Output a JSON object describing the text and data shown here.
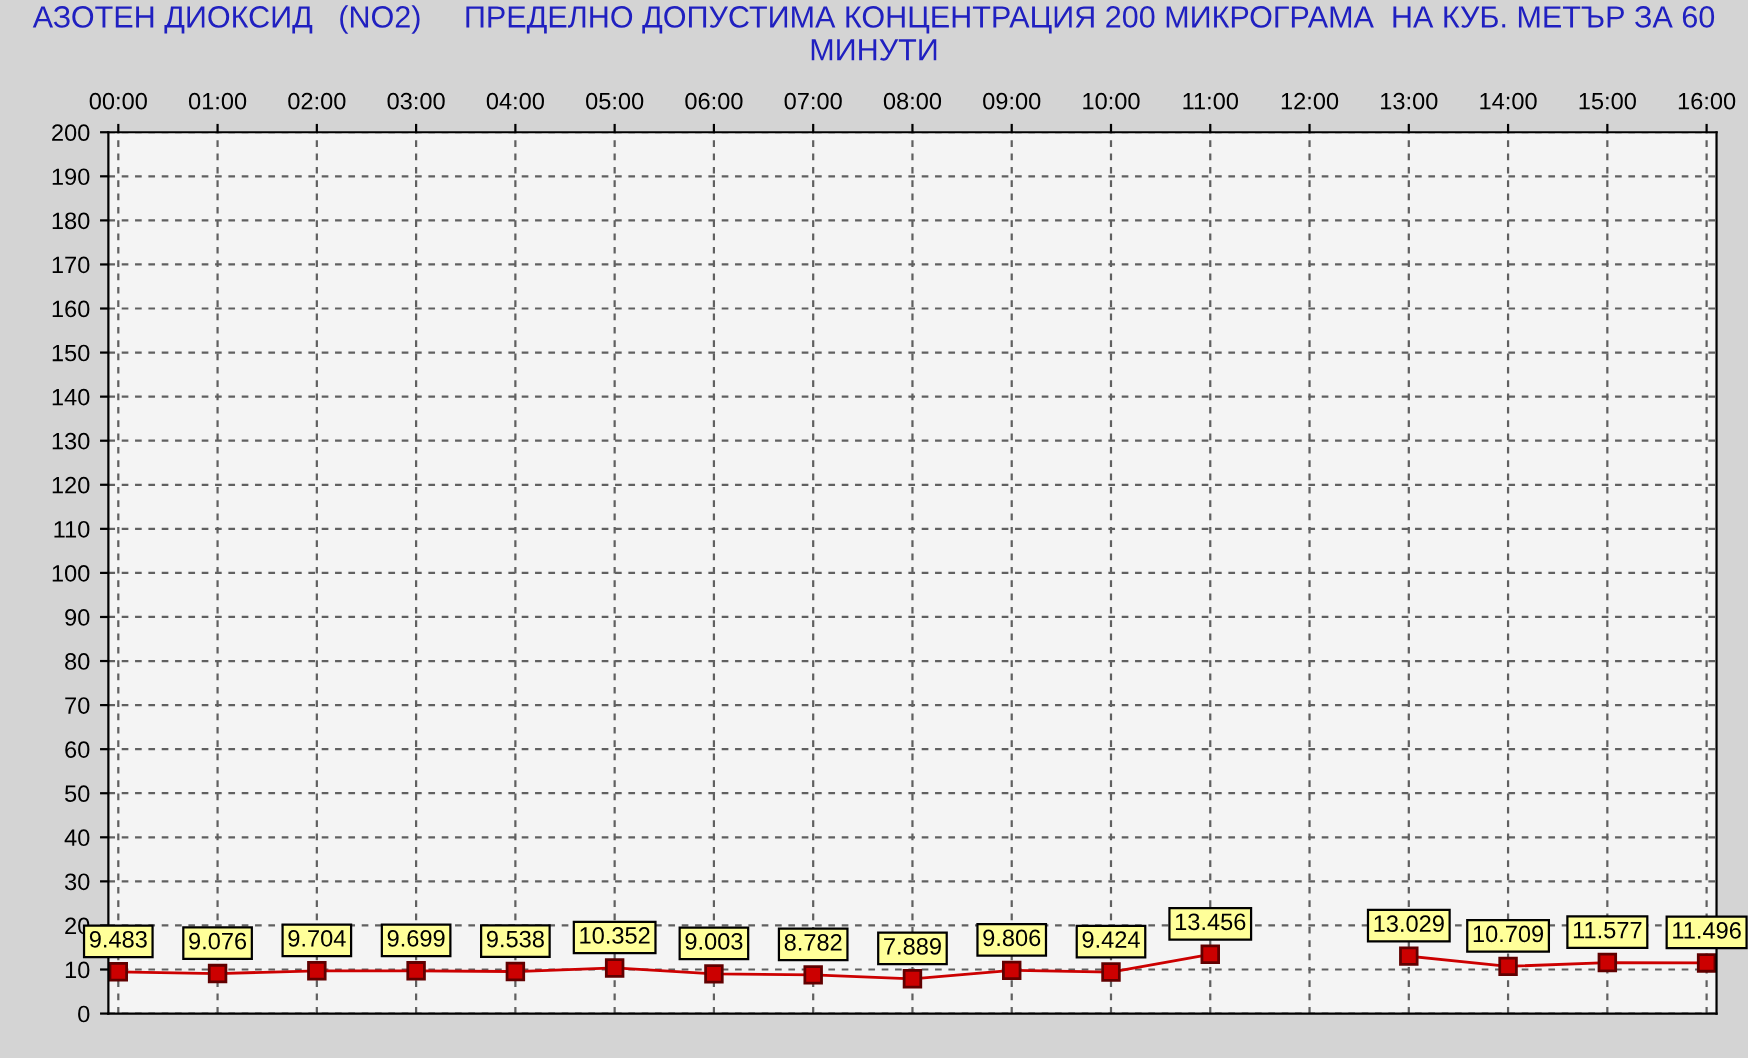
{
  "chart_data": {
    "type": "line",
    "title": "АЗОТЕН ДИОКСИД   (NO2)     ПРЕДЕЛНО ДОПУСТИМА КОНЦЕНТРАЦИЯ 200 МИКРОГРАМА  НА КУБ. МЕТЪР ЗА 60 МИНУТИ",
    "categories": [
      "00:00",
      "01:00",
      "02:00",
      "03:00",
      "04:00",
      "05:00",
      "06:00",
      "07:00",
      "08:00",
      "09:00",
      "10:00",
      "11:00",
      "12:00",
      "13:00",
      "14:00",
      "15:00",
      "16:00"
    ],
    "series": [
      {
        "color": "#cc0000",
        "values": [
          9.483,
          9.076,
          9.704,
          9.699,
          9.538,
          10.352,
          9.003,
          8.782,
          7.889,
          9.806,
          9.424,
          13.456,
          null,
          13.029,
          10.709,
          11.577,
          11.496
        ]
      }
    ],
    "ylim": [
      0,
      200
    ],
    "yticks": [
      0,
      10,
      20,
      30,
      40,
      50,
      60,
      70,
      80,
      90,
      100,
      110,
      120,
      130,
      140,
      150,
      160,
      170,
      180,
      190,
      200
    ],
    "grid": true,
    "marker": "square",
    "line_style": "solid",
    "data_labels": true
  }
}
